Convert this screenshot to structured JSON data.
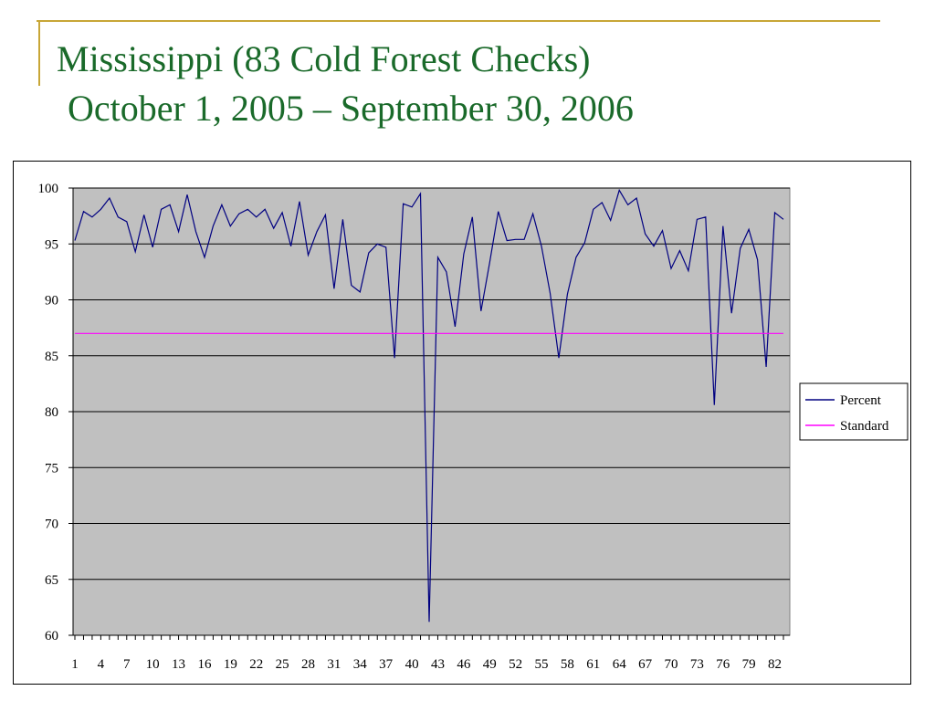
{
  "slide": {
    "title_line1": "Mississippi (83 Cold Forest Checks)",
    "title_line2": "October 1, 2005 – September 30, 2006"
  },
  "colors": {
    "title": "#1a6a2a",
    "accent": "#c8a637",
    "plot_bg": "#c0c0c0",
    "percent_line": "#000080",
    "standard_line": "#ff00ff"
  },
  "chart_data": {
    "type": "line",
    "title": "",
    "xlabel": "",
    "ylabel": "",
    "ylim": [
      60,
      100
    ],
    "yticks": [
      100,
      95,
      90,
      85,
      80,
      75,
      70,
      65,
      60
    ],
    "xlim": [
      1,
      83
    ],
    "xtick_labels": [
      "1",
      "4",
      "7",
      "10",
      "13",
      "16",
      "19",
      "22",
      "25",
      "28",
      "31",
      "34",
      "37",
      "40",
      "43",
      "46",
      "49",
      "52",
      "55",
      "58",
      "61",
      "64",
      "67",
      "70",
      "73",
      "76",
      "79",
      "82"
    ],
    "grid": "horizontal",
    "legend_position": "right",
    "series": [
      {
        "name": "Percent",
        "color": "#000080",
        "values": [
          95.3,
          97.9,
          97.4,
          98.1,
          99.1,
          97.4,
          97.0,
          94.3,
          97.6,
          94.7,
          98.1,
          98.5,
          96.1,
          99.4,
          96.1,
          93.8,
          96.6,
          98.5,
          96.6,
          97.7,
          98.1,
          97.4,
          98.1,
          96.4,
          97.8,
          94.8,
          98.8,
          94.0,
          96.1,
          97.6,
          91.0,
          97.2,
          91.3,
          90.7,
          94.2,
          95.0,
          94.7,
          84.8,
          98.6,
          98.3,
          99.5,
          61.2,
          93.8,
          92.5,
          87.6,
          94.1,
          97.4,
          89.0,
          93.3,
          97.9,
          95.3,
          95.4,
          95.4,
          97.7,
          94.8,
          90.6,
          84.8,
          90.5,
          93.8,
          95.1,
          98.1,
          98.7,
          97.1,
          99.8,
          98.5,
          99.1,
          95.9,
          94.8,
          96.2,
          92.8,
          94.4,
          92.6,
          97.2,
          97.4,
          80.6,
          96.6,
          88.8,
          94.6,
          96.3,
          93.6,
          84.0,
          97.8,
          97.2
        ]
      },
      {
        "name": "Standard",
        "color": "#ff00ff",
        "values": [
          87,
          87,
          87,
          87,
          87,
          87,
          87,
          87,
          87,
          87,
          87,
          87,
          87,
          87,
          87,
          87,
          87,
          87,
          87,
          87,
          87,
          87,
          87,
          87,
          87,
          87,
          87,
          87,
          87,
          87,
          87,
          87,
          87,
          87,
          87,
          87,
          87,
          87,
          87,
          87,
          87,
          87,
          87,
          87,
          87,
          87,
          87,
          87,
          87,
          87,
          87,
          87,
          87,
          87,
          87,
          87,
          87,
          87,
          87,
          87,
          87,
          87,
          87,
          87,
          87,
          87,
          87,
          87,
          87,
          87,
          87,
          87,
          87,
          87,
          87,
          87,
          87,
          87,
          87,
          87,
          87,
          87,
          87
        ]
      }
    ]
  }
}
